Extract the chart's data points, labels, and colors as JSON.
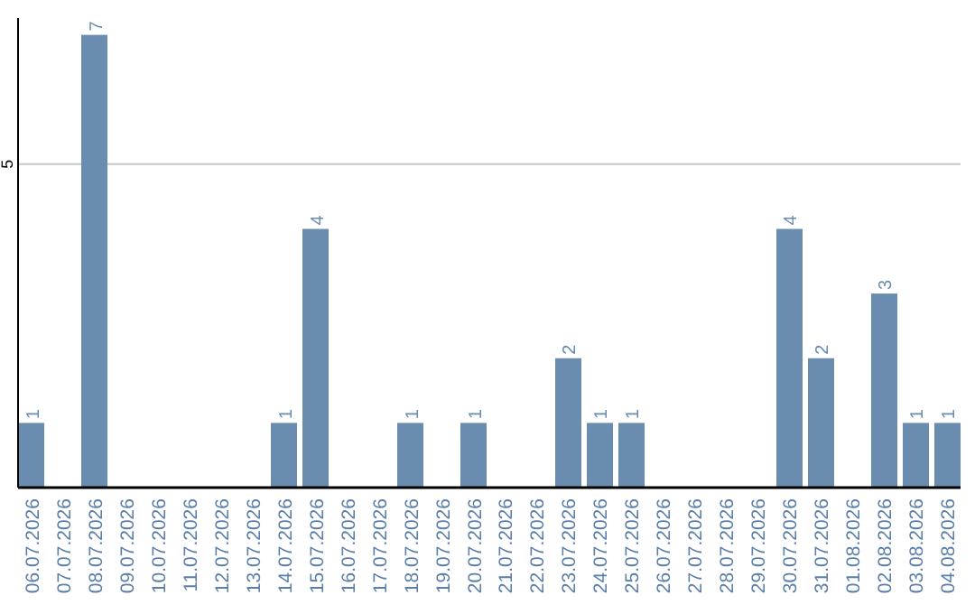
{
  "chart_data": {
    "type": "bar",
    "categories": [
      "06.07.2026",
      "07.07.2026",
      "08.07.2026",
      "09.07.2026",
      "10.07.2026",
      "11.07.2026",
      "12.07.2026",
      "13.07.2026",
      "14.07.2026",
      "15.07.2026",
      "16.07.2026",
      "17.07.2026",
      "18.07.2026",
      "19.07.2026",
      "20.07.2026",
      "21.07.2026",
      "22.07.2026",
      "23.07.2026",
      "24.07.2026",
      "25.07.2026",
      "26.07.2026",
      "27.07.2026",
      "28.07.2026",
      "29.07.2026",
      "30.07.2026",
      "31.07.2026",
      "01.08.2026",
      "02.08.2026",
      "03.08.2026",
      "04.08.2026"
    ],
    "values": [
      1,
      null,
      7,
      null,
      null,
      null,
      null,
      null,
      1,
      4,
      null,
      null,
      1,
      null,
      1,
      null,
      null,
      2,
      1,
      1,
      null,
      null,
      null,
      null,
      4,
      2,
      null,
      3,
      1,
      1
    ],
    "color": "#6a8caf",
    "ylim": [
      0,
      7.26
    ],
    "yticks": [
      {
        "value": 0,
        "label": null
      },
      5
    ],
    "grid": "y",
    "data_labels": true
  }
}
